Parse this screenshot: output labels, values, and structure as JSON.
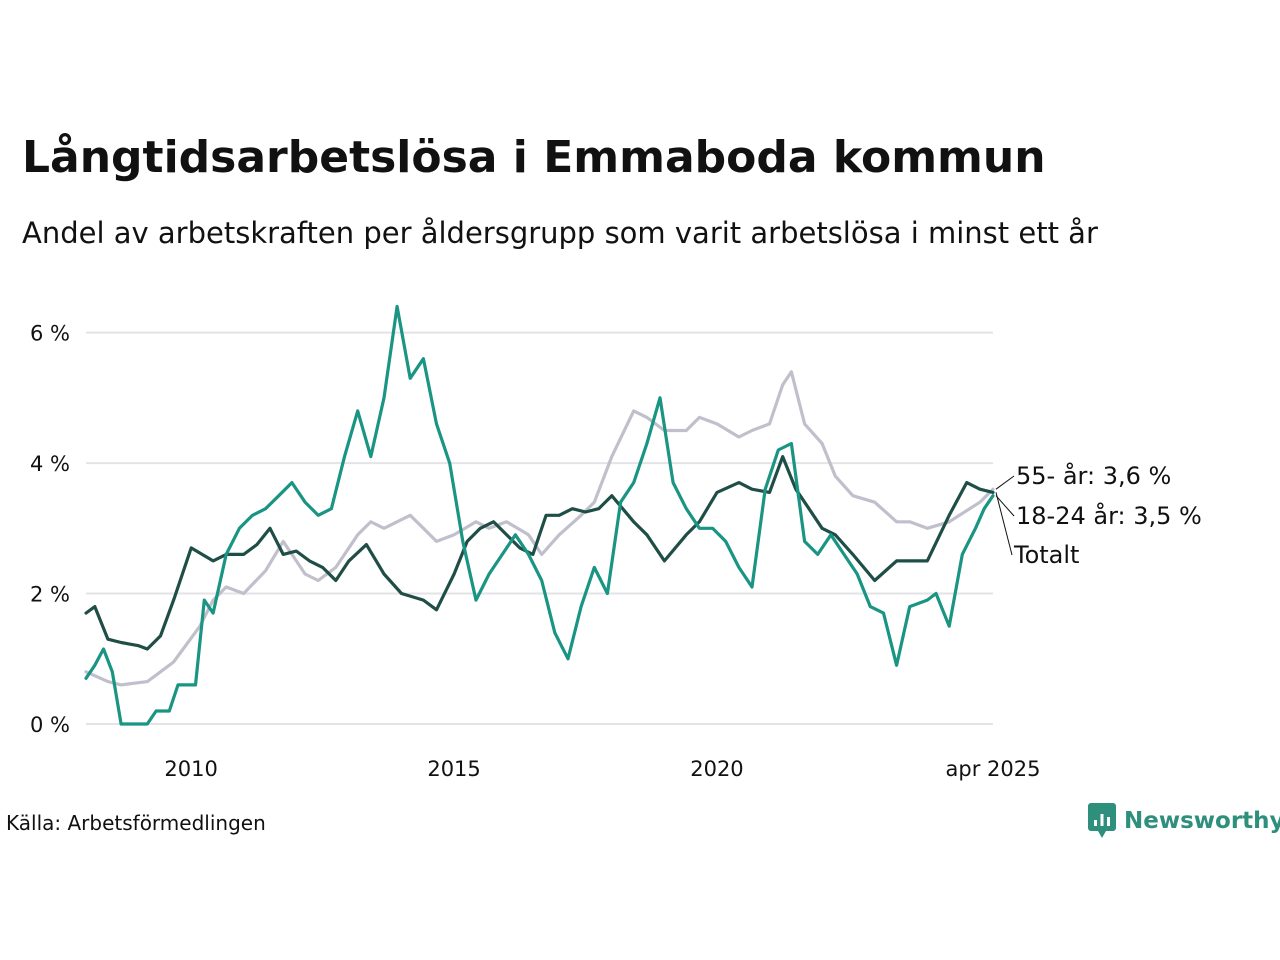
{
  "title": "Långtidsarbetslösa i Emmaboda kommun",
  "subtitle": "Andel av arbetskraften per åldersgrupp som varit arbetslösa i minst ett år",
  "source": "Källa: Arbetsförmedlingen",
  "brand": "Newsworthy",
  "colors": {
    "totalt": "#1f4e46",
    "age_18_24": "#1a9483",
    "age_55": "#c2bfcc",
    "grid": "#e3e3e8",
    "brand": "#2f8f7d"
  },
  "chart_data": {
    "type": "line",
    "x_axis": {
      "start": "2008-01",
      "end": "2025-04",
      "ticks": [
        "2010",
        "2015",
        "2020",
        "apr 2025"
      ]
    },
    "y_axis": {
      "ylim": [
        0,
        6.5
      ],
      "ticks": [
        0,
        2,
        4,
        6
      ],
      "tick_labels": [
        "0 %",
        "2 %",
        "4 %",
        "6 %"
      ]
    },
    "grid": "horizontal",
    "series": [
      {
        "key": "age_55",
        "name": "55- år",
        "end_label": "55- år: 3,6 %",
        "color": "#c2bfcc",
        "points": [
          [
            "2008-01",
            0.8
          ],
          [
            "2008-06",
            0.65
          ],
          [
            "2008-09",
            0.6
          ],
          [
            "2009-03",
            0.65
          ],
          [
            "2009-06",
            0.8
          ],
          [
            "2009-09",
            0.95
          ],
          [
            "2010-03",
            1.5
          ],
          [
            "2010-06",
            1.9
          ],
          [
            "2010-09",
            2.1
          ],
          [
            "2011-01",
            2.0
          ],
          [
            "2011-06",
            2.35
          ],
          [
            "2011-10",
            2.8
          ],
          [
            "2012-03",
            2.3
          ],
          [
            "2012-06",
            2.2
          ],
          [
            "2012-10",
            2.4
          ],
          [
            "2013-03",
            2.9
          ],
          [
            "2013-06",
            3.1
          ],
          [
            "2013-09",
            3.0
          ],
          [
            "2014-03",
            3.2
          ],
          [
            "2014-06",
            3.0
          ],
          [
            "2014-09",
            2.8
          ],
          [
            "2015-01",
            2.9
          ],
          [
            "2015-06",
            3.1
          ],
          [
            "2015-09",
            3.0
          ],
          [
            "2016-01",
            3.1
          ],
          [
            "2016-06",
            2.9
          ],
          [
            "2016-09",
            2.6
          ],
          [
            "2017-01",
            2.9
          ],
          [
            "2017-06",
            3.2
          ],
          [
            "2017-09",
            3.4
          ],
          [
            "2018-01",
            4.1
          ],
          [
            "2018-06",
            4.8
          ],
          [
            "2018-09",
            4.7
          ],
          [
            "2019-01",
            4.5
          ],
          [
            "2019-06",
            4.5
          ],
          [
            "2019-09",
            4.7
          ],
          [
            "2020-01",
            4.6
          ],
          [
            "2020-06",
            4.4
          ],
          [
            "2020-09",
            4.5
          ],
          [
            "2021-01",
            4.6
          ],
          [
            "2021-04",
            5.2
          ],
          [
            "2021-06",
            5.4
          ],
          [
            "2021-09",
            4.6
          ],
          [
            "2022-01",
            4.3
          ],
          [
            "2022-04",
            3.8
          ],
          [
            "2022-08",
            3.5
          ],
          [
            "2023-01",
            3.4
          ],
          [
            "2023-06",
            3.1
          ],
          [
            "2023-09",
            3.1
          ],
          [
            "2024-01",
            3.0
          ],
          [
            "2024-06",
            3.1
          ],
          [
            "2025-01",
            3.4
          ],
          [
            "2025-04",
            3.6
          ]
        ]
      },
      {
        "key": "totalt",
        "name": "Totalt",
        "end_label": "Totalt",
        "color": "#1f4e46",
        "points": [
          [
            "2008-01",
            1.7
          ],
          [
            "2008-03",
            1.8
          ],
          [
            "2008-06",
            1.3
          ],
          [
            "2008-09",
            1.25
          ],
          [
            "2009-01",
            1.2
          ],
          [
            "2009-03",
            1.15
          ],
          [
            "2009-06",
            1.35
          ],
          [
            "2009-09",
            1.9
          ],
          [
            "2010-01",
            2.7
          ],
          [
            "2010-06",
            2.5
          ],
          [
            "2010-09",
            2.6
          ],
          [
            "2011-01",
            2.6
          ],
          [
            "2011-04",
            2.75
          ],
          [
            "2011-07",
            3.0
          ],
          [
            "2011-10",
            2.6
          ],
          [
            "2012-01",
            2.65
          ],
          [
            "2012-04",
            2.5
          ],
          [
            "2012-07",
            2.4
          ],
          [
            "2012-10",
            2.2
          ],
          [
            "2013-01",
            2.5
          ],
          [
            "2013-05",
            2.75
          ],
          [
            "2013-09",
            2.3
          ],
          [
            "2014-01",
            2.0
          ],
          [
            "2014-06",
            1.9
          ],
          [
            "2014-09",
            1.75
          ],
          [
            "2015-01",
            2.3
          ],
          [
            "2015-04",
            2.8
          ],
          [
            "2015-07",
            3.0
          ],
          [
            "2015-10",
            3.1
          ],
          [
            "2016-01",
            2.9
          ],
          [
            "2016-04",
            2.7
          ],
          [
            "2016-07",
            2.6
          ],
          [
            "2016-10",
            3.2
          ],
          [
            "2017-01",
            3.2
          ],
          [
            "2017-04",
            3.3
          ],
          [
            "2017-07",
            3.25
          ],
          [
            "2017-10",
            3.3
          ],
          [
            "2018-01",
            3.5
          ],
          [
            "2018-06",
            3.1
          ],
          [
            "2018-09",
            2.9
          ],
          [
            "2019-01",
            2.5
          ],
          [
            "2019-06",
            2.9
          ],
          [
            "2019-09",
            3.1
          ],
          [
            "2020-01",
            3.55
          ],
          [
            "2020-06",
            3.7
          ],
          [
            "2020-09",
            3.6
          ],
          [
            "2021-01",
            3.55
          ],
          [
            "2021-04",
            4.1
          ],
          [
            "2021-07",
            3.6
          ],
          [
            "2021-10",
            3.3
          ],
          [
            "2022-01",
            3.0
          ],
          [
            "2022-04",
            2.9
          ],
          [
            "2022-08",
            2.6
          ],
          [
            "2023-01",
            2.2
          ],
          [
            "2023-06",
            2.5
          ],
          [
            "2023-09",
            2.5
          ],
          [
            "2024-01",
            2.5
          ],
          [
            "2024-06",
            3.2
          ],
          [
            "2024-10",
            3.7
          ],
          [
            "2025-01",
            3.6
          ],
          [
            "2025-04",
            3.55
          ]
        ]
      },
      {
        "key": "age_18_24",
        "name": "18-24 år",
        "end_label": "18-24 år: 3,5 %",
        "color": "#1a9483",
        "points": [
          [
            "2008-01",
            0.7
          ],
          [
            "2008-03",
            0.9
          ],
          [
            "2008-05",
            1.15
          ],
          [
            "2008-07",
            0.8
          ],
          [
            "2008-09",
            0.0
          ],
          [
            "2009-03",
            0.0
          ],
          [
            "2009-05",
            0.2
          ],
          [
            "2009-08",
            0.2
          ],
          [
            "2009-10",
            0.6
          ],
          [
            "2010-02",
            0.6
          ],
          [
            "2010-04",
            1.9
          ],
          [
            "2010-06",
            1.7
          ],
          [
            "2010-09",
            2.6
          ],
          [
            "2010-12",
            3.0
          ],
          [
            "2011-03",
            3.2
          ],
          [
            "2011-06",
            3.3
          ],
          [
            "2011-09",
            3.5
          ],
          [
            "2011-12",
            3.7
          ],
          [
            "2012-03",
            3.4
          ],
          [
            "2012-06",
            3.2
          ],
          [
            "2012-09",
            3.3
          ],
          [
            "2012-12",
            4.1
          ],
          [
            "2013-03",
            4.8
          ],
          [
            "2013-06",
            4.1
          ],
          [
            "2013-09",
            5.0
          ],
          [
            "2013-12",
            6.4
          ],
          [
            "2014-03",
            5.3
          ],
          [
            "2014-06",
            5.6
          ],
          [
            "2014-09",
            4.6
          ],
          [
            "2014-12",
            4.0
          ],
          [
            "2015-03",
            2.8
          ],
          [
            "2015-06",
            1.9
          ],
          [
            "2015-09",
            2.3
          ],
          [
            "2015-12",
            2.6
          ],
          [
            "2016-03",
            2.9
          ],
          [
            "2016-06",
            2.6
          ],
          [
            "2016-09",
            2.2
          ],
          [
            "2016-12",
            1.4
          ],
          [
            "2017-03",
            1.0
          ],
          [
            "2017-06",
            1.8
          ],
          [
            "2017-09",
            2.4
          ],
          [
            "2017-12",
            2.0
          ],
          [
            "2018-03",
            3.4
          ],
          [
            "2018-06",
            3.7
          ],
          [
            "2018-09",
            4.3
          ],
          [
            "2018-12",
            5.0
          ],
          [
            "2019-03",
            3.7
          ],
          [
            "2019-06",
            3.3
          ],
          [
            "2019-09",
            3.0
          ],
          [
            "2019-12",
            3.0
          ],
          [
            "2020-03",
            2.8
          ],
          [
            "2020-06",
            2.4
          ],
          [
            "2020-09",
            2.1
          ],
          [
            "2020-12",
            3.6
          ],
          [
            "2021-03",
            4.2
          ],
          [
            "2021-06",
            4.3
          ],
          [
            "2021-09",
            2.8
          ],
          [
            "2021-12",
            2.6
          ],
          [
            "2022-03",
            2.9
          ],
          [
            "2022-06",
            2.6
          ],
          [
            "2022-09",
            2.3
          ],
          [
            "2022-12",
            1.8
          ],
          [
            "2023-03",
            1.7
          ],
          [
            "2023-06",
            0.9
          ],
          [
            "2023-09",
            1.8
          ],
          [
            "2024-01",
            1.9
          ],
          [
            "2024-03",
            2.0
          ],
          [
            "2024-06",
            1.5
          ],
          [
            "2024-09",
            2.6
          ],
          [
            "2024-12",
            3.0
          ],
          [
            "2025-02",
            3.3
          ],
          [
            "2025-04",
            3.5
          ]
        ]
      }
    ]
  }
}
